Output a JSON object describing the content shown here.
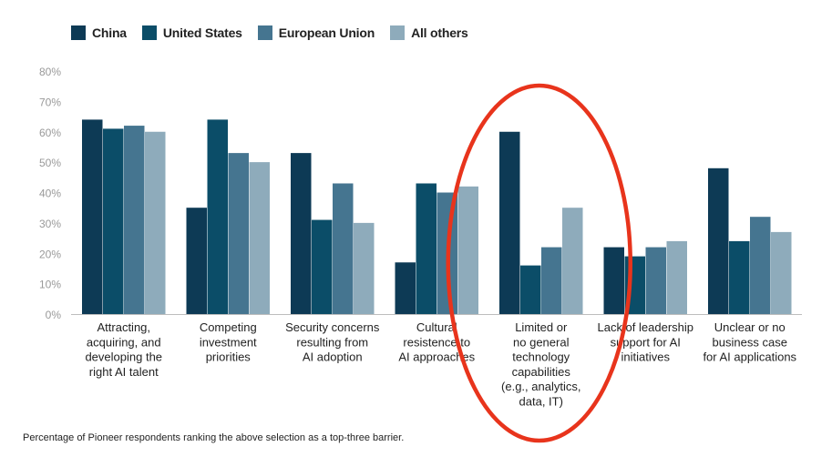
{
  "chart_data": {
    "type": "bar",
    "categories": [
      [
        "Attracting,",
        "acquiring, and",
        "developing the",
        "right AI talent"
      ],
      [
        "Competing",
        "investment",
        "priorities"
      ],
      [
        "Security concerns",
        "resulting from",
        "AI adoption"
      ],
      [
        "Cultural",
        "resistence to",
        "AI approaches"
      ],
      [
        "Limited or",
        "no general",
        "technology",
        "capabilities",
        "(e.g., analytics,",
        "data, IT)"
      ],
      [
        "Lack of leadership",
        "support for AI",
        "initiatives"
      ],
      [
        "Unclear or no",
        "business case",
        "for AI applications"
      ]
    ],
    "series": [
      {
        "name": "China",
        "color": "#0d3a55",
        "values": [
          64,
          35,
          53,
          17,
          60,
          22,
          48
        ]
      },
      {
        "name": "United States",
        "color": "#0b4d68",
        "values": [
          61,
          64,
          31,
          43,
          16,
          19,
          24
        ]
      },
      {
        "name": "European Union",
        "color": "#457590",
        "values": [
          62,
          53,
          43,
          40,
          22,
          22,
          32
        ]
      },
      {
        "name": "All others",
        "color": "#8eabbb",
        "values": [
          60,
          50,
          30,
          42,
          35,
          24,
          27
        ]
      }
    ],
    "yticks": [
      "0%",
      "10%",
      "20%",
      "30%",
      "40%",
      "50%",
      "60%",
      "70%",
      "80%"
    ],
    "ylim": [
      0,
      80
    ],
    "grid": false,
    "legend": "top-left",
    "annotation": {
      "type": "ellipse",
      "color": "#e8341c",
      "highlight_category_index": 4
    },
    "footnote": "Percentage of Pioneer respondents ranking the above selection as a top-three barrier."
  }
}
